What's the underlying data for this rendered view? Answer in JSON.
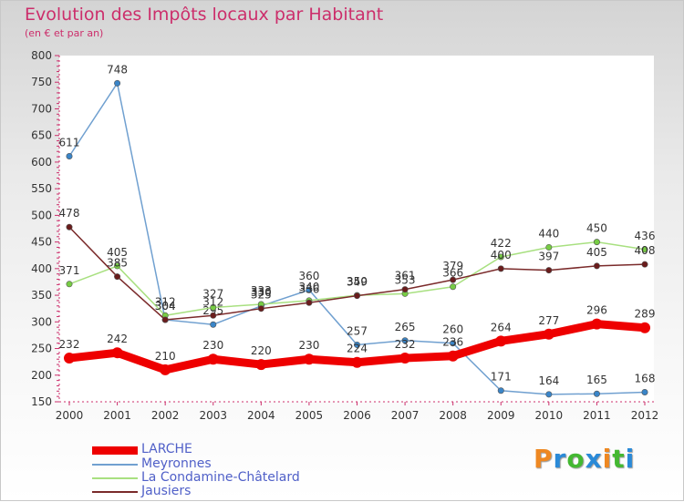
{
  "chart_data": {
    "type": "line",
    "title": "Evolution des Impôts locaux par Habitant",
    "subtitle": "(en € et par an)",
    "x": [
      "2000",
      "2001",
      "2002",
      "2003",
      "2004",
      "2005",
      "2006",
      "2007",
      "2008",
      "2009",
      "2010",
      "2011",
      "2012"
    ],
    "ylim": [
      150,
      800
    ],
    "yticks": [
      150,
      200,
      250,
      300,
      350,
      400,
      450,
      500,
      550,
      600,
      650,
      700,
      750,
      800
    ],
    "grid": false,
    "series": [
      {
        "name": "LARCHE",
        "color": "#ee0000",
        "emphasis": true,
        "values": [
          232,
          242,
          210,
          230,
          220,
          230,
          224,
          232,
          236,
          264,
          277,
          296,
          289
        ]
      },
      {
        "name": "Meyronnes",
        "color": "#70a0d0",
        "point_color": "#3a85c8",
        "values": [
          611,
          748,
          304,
          295,
          330,
          360,
          257,
          265,
          260,
          171,
          164,
          165,
          168
        ]
      },
      {
        "name": "La Condamine-Châtelard",
        "color": "#a8e080",
        "point_color": "#77cc44",
        "values": [
          371,
          405,
          312,
          327,
          333,
          340,
          350,
          353,
          366,
          422,
          440,
          450,
          436
        ]
      },
      {
        "name": "Jausiers",
        "color": "#7a2a2a",
        "point_color": "#6a1c1c",
        "values": [
          478,
          385,
          304,
          312,
          325,
          336,
          349,
          361,
          379,
          400,
          397,
          405,
          408
        ]
      }
    ]
  },
  "brand": {
    "letters": [
      "P",
      "r",
      "o",
      "x",
      "i",
      "t",
      "i"
    ],
    "colors": [
      "#ee8822",
      "#2a8ad8",
      "#44b832",
      "#2a8ad8",
      "#ee8822",
      "#44b832",
      "#2a8ad8"
    ]
  }
}
